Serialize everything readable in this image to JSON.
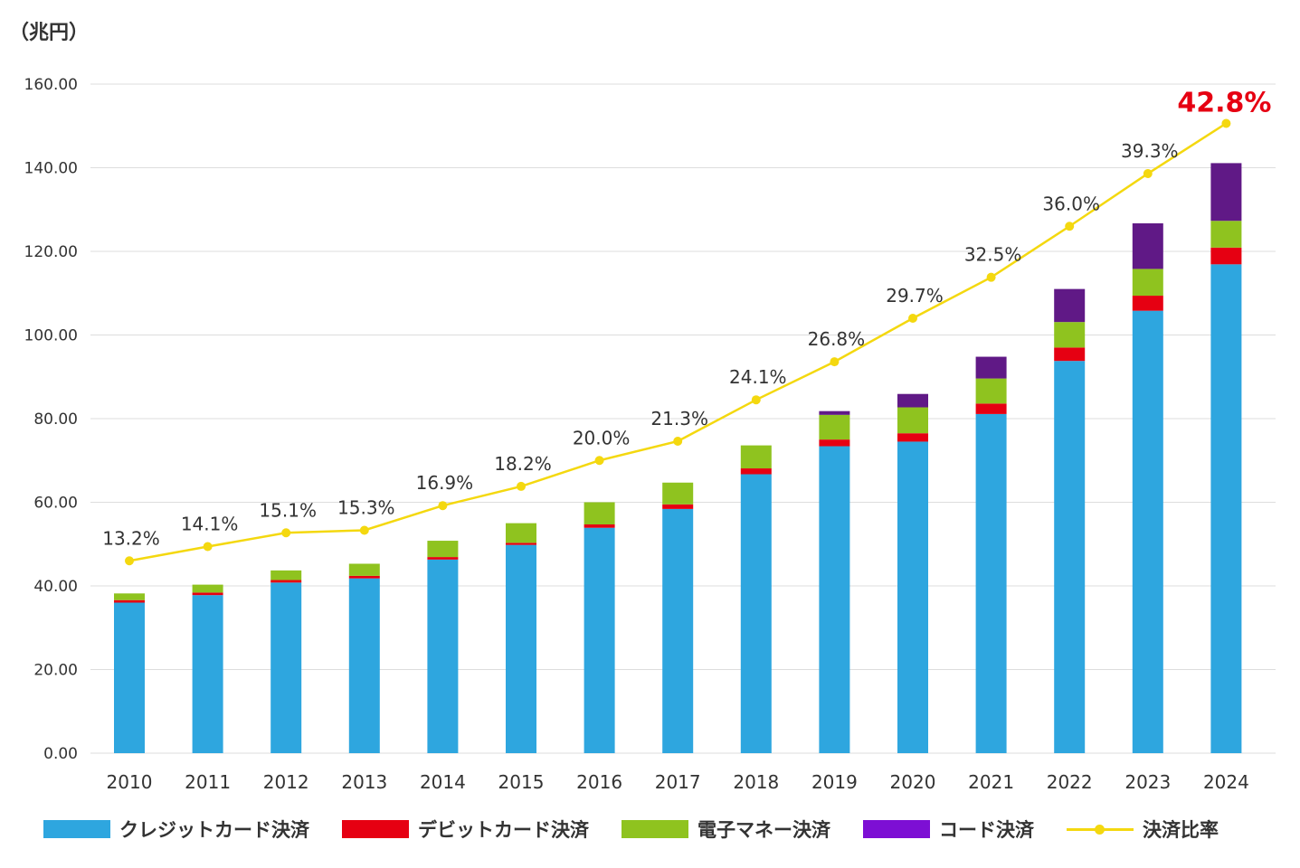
{
  "chart_data": {
    "type": "bar",
    "stacked": true,
    "unit_label": "（兆円）",
    "categories": [
      "2010",
      "2011",
      "2012",
      "2013",
      "2014",
      "2015",
      "2016",
      "2017",
      "2018",
      "2019",
      "2020",
      "2021",
      "2022",
      "2023",
      "2024"
    ],
    "ylim": [
      0,
      160
    ],
    "yticks": [
      "0.00",
      "20.00",
      "40.00",
      "60.00",
      "80.00",
      "100.00",
      "120.00",
      "140.00",
      "160.00"
    ],
    "grid": true,
    "legend_position": "bottom",
    "series": [
      {
        "name": "クレジットカード決済",
        "color": "#2ea6df",
        "values": [
          36.0,
          37.8,
          40.8,
          41.8,
          46.3,
          49.8,
          53.9,
          58.4,
          66.7,
          73.4,
          74.5,
          81.1,
          93.8,
          105.8,
          116.9
        ]
      },
      {
        "name": "デビットカード決済",
        "color": "#e60012",
        "values": [
          0.6,
          0.6,
          0.6,
          0.6,
          0.6,
          0.5,
          0.8,
          1.1,
          1.4,
          1.6,
          2.0,
          2.5,
          3.2,
          3.6,
          4.0
        ]
      },
      {
        "name": "電子マネー決済",
        "color": "#8fc31f",
        "values": [
          1.6,
          1.9,
          2.3,
          2.9,
          3.9,
          4.7,
          5.3,
          5.2,
          5.5,
          5.9,
          6.2,
          6.0,
          6.1,
          6.4,
          6.4
        ]
      },
      {
        "name": "コード決済",
        "color": "#601986",
        "legend_color": "#7d0fd4",
        "values": [
          0,
          0,
          0,
          0,
          0,
          0,
          0,
          0,
          0,
          0.9,
          3.2,
          5.2,
          7.9,
          10.9,
          13.8
        ]
      }
    ],
    "line_series": {
      "name": "決済比率",
      "color": "#f4d80f",
      "labels": [
        "13.2%",
        "14.1%",
        "15.1%",
        "15.3%",
        "16.9%",
        "18.2%",
        "20.0%",
        "21.3%",
        "24.1%",
        "26.8%",
        "29.7%",
        "32.5%",
        "36.0%",
        "39.3%",
        "42.8%"
      ],
      "plot_values": [
        46.0,
        49.4,
        52.7,
        53.3,
        59.2,
        63.8,
        70.0,
        74.6,
        84.5,
        93.6,
        104.0,
        113.8,
        126.0,
        138.6,
        150.6
      ],
      "highlight_color": "#e60012"
    }
  }
}
